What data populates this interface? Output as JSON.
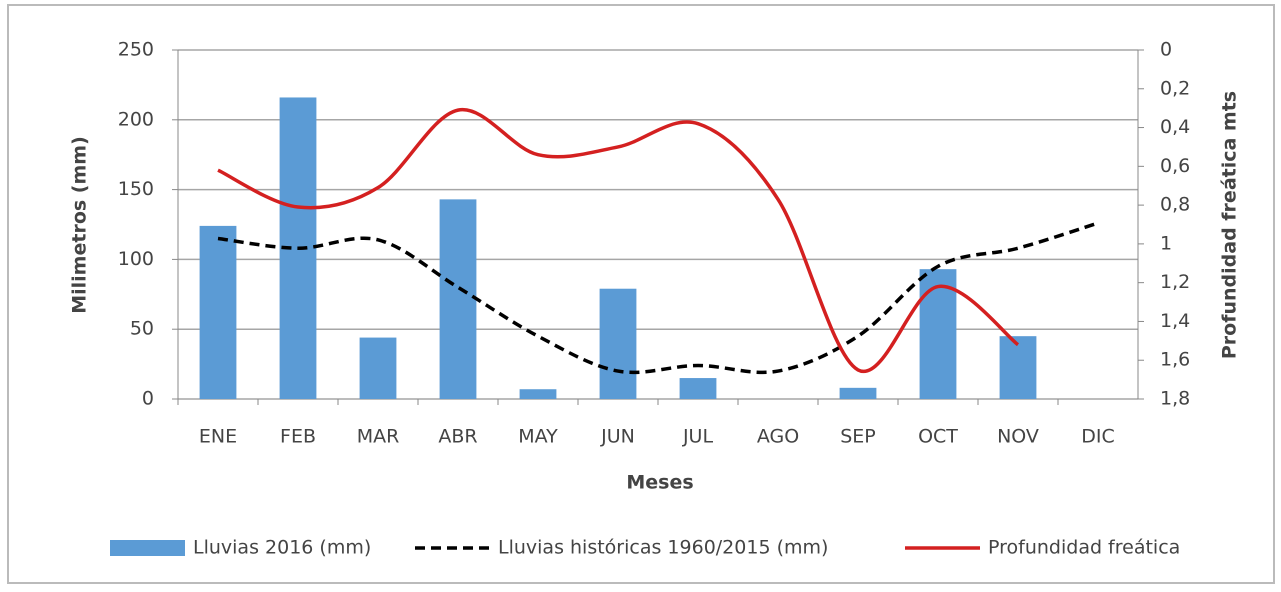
{
  "chart_data": {
    "type": "combo",
    "xlabel": "Meses",
    "ylabel": "Milimetros (mm)",
    "y2label": "Profundidad freática mts",
    "categories": [
      "ENE",
      "FEB",
      "MAR",
      "ABR",
      "MAY",
      "JUN",
      "JUL",
      "AGO",
      "SEP",
      "OCT",
      "NOV",
      "DIC"
    ],
    "series": [
      {
        "name": "Lluvias 2016 (mm)",
        "type": "bar",
        "color": "#5b9bd5",
        "values": [
          124,
          216,
          44,
          143,
          7,
          79,
          15,
          0,
          8,
          93,
          45,
          null
        ]
      },
      {
        "name": "Lluvias históricas 1960/2015 (mm)",
        "type": "line",
        "dashed": true,
        "color": "#000000",
        "values": [
          115,
          108,
          114,
          80,
          45,
          20,
          24,
          20,
          45,
          95,
          108,
          126
        ]
      },
      {
        "name": "Profundidad freática",
        "type": "line",
        "axis": "y2",
        "color": "#d42020",
        "values": [
          0.62,
          0.81,
          0.71,
          0.31,
          0.54,
          0.5,
          0.38,
          0.77,
          1.65,
          1.22,
          1.52,
          null
        ]
      }
    ],
    "ylim": [
      0,
      250
    ],
    "yticks": [
      0,
      50,
      100,
      150,
      200,
      250
    ],
    "y2lim": [
      1.8,
      0
    ],
    "y2ticks": [
      {
        "value": 1.8,
        "label": "1,8"
      },
      {
        "value": 1.6,
        "label": "1,6"
      },
      {
        "value": 1.4,
        "label": "1,4"
      },
      {
        "value": 1.2,
        "label": "1,2"
      },
      {
        "value": 1,
        "label": "1"
      },
      {
        "value": 0.8,
        "label": "0,8"
      },
      {
        "value": 0.6,
        "label": "0,6"
      },
      {
        "value": 0.4,
        "label": "0,4"
      },
      {
        "value": 0.2,
        "label": "0,2"
      },
      {
        "value": 0,
        "label": "0"
      }
    ],
    "grid": true,
    "legend": "bottom"
  }
}
